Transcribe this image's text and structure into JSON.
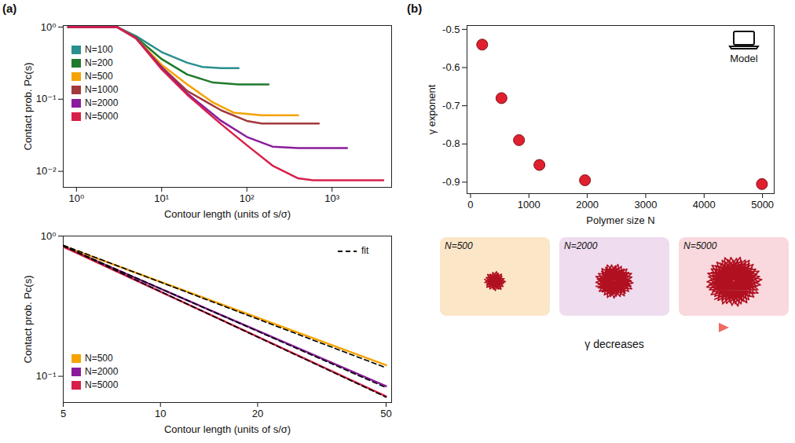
{
  "chart_data": [
    {
      "panel": "(a)",
      "type": "line",
      "log": true,
      "frame": true,
      "xlabel": "Contour length (units of s/σ)",
      "ylabel": "Contact prob. Pc(s)",
      "xlim": [
        0.7,
        5000
      ],
      "ylim": [
        0.006,
        1.05
      ],
      "xticks": [
        {
          "value": 1,
          "label": "10⁰"
        },
        {
          "value": 10,
          "label": "10¹"
        },
        {
          "value": 100,
          "label": "10²"
        },
        {
          "value": 1000,
          "label": "10³"
        }
      ],
      "yticks": [
        {
          "value": 0.01,
          "label": "10⁻²"
        },
        {
          "value": 0.1,
          "label": "10⁻¹"
        },
        {
          "value": 1,
          "label": "10⁰"
        }
      ],
      "legend": "lower left",
      "series": [
        {
          "name": "N=100",
          "color": "#2a8f8f",
          "x": [
            0.8,
            3,
            5,
            10,
            20,
            30,
            50,
            80
          ],
          "values": [
            1,
            1,
            0.75,
            0.45,
            0.32,
            0.28,
            0.27,
            0.27
          ]
        },
        {
          "name": "N=200",
          "color": "#1f7a2c",
          "x": [
            0.8,
            3,
            5,
            10,
            20,
            40,
            80,
            180
          ],
          "values": [
            1,
            1,
            0.72,
            0.36,
            0.22,
            0.17,
            0.16,
            0.16
          ]
        },
        {
          "name": "N=500",
          "color": "#f5a300",
          "x": [
            0.8,
            3,
            5,
            10,
            20,
            40,
            70,
            150,
            400
          ],
          "values": [
            1,
            1,
            0.7,
            0.3,
            0.16,
            0.09,
            0.065,
            0.06,
            0.06
          ]
        },
        {
          "name": "N=1000",
          "color": "#a3393b",
          "x": [
            0.8,
            3,
            5,
            10,
            20,
            50,
            100,
            150,
            300,
            700
          ],
          "values": [
            1,
            1,
            0.7,
            0.28,
            0.13,
            0.07,
            0.05,
            0.046,
            0.046,
            0.046
          ]
        },
        {
          "name": "N=2000",
          "color": "#8a1c9c",
          "x": [
            0.8,
            3,
            5,
            10,
            20,
            50,
            100,
            200,
            400,
            600,
            1500
          ],
          "values": [
            1,
            1,
            0.7,
            0.27,
            0.12,
            0.05,
            0.03,
            0.022,
            0.021,
            0.021,
            0.021
          ]
        },
        {
          "name": "N=5000",
          "color": "#d6204a",
          "x": [
            0.8,
            3,
            5,
            10,
            20,
            50,
            100,
            200,
            400,
            600,
            4000
          ],
          "values": [
            1,
            1,
            0.7,
            0.26,
            0.115,
            0.045,
            0.023,
            0.012,
            0.008,
            0.0075,
            0.0075
          ]
        }
      ]
    },
    {
      "type": "line",
      "log": true,
      "xlabel": "Contour length (units of s/σ)",
      "ylabel": "Contact prob. Pc(s)",
      "xlim": [
        5,
        52
      ],
      "ylim": [
        0.065,
        1
      ],
      "xticks": [
        5,
        10,
        20,
        50
      ],
      "yticks": [
        {
          "value": 0.1,
          "label": "10⁻¹"
        },
        {
          "value": 1,
          "label": "10⁰"
        }
      ],
      "legend": "lower left",
      "series": [
        {
          "name": "N=500",
          "color": "#f5a300",
          "x": [
            5,
            50
          ],
          "values": [
            0.85,
            0.12
          ]
        },
        {
          "name": "N=2000",
          "color": "#8a1c9c",
          "x": [
            5,
            50
          ],
          "values": [
            0.84,
            0.085
          ]
        },
        {
          "name": "N=5000",
          "color": "#d6204a",
          "x": [
            5,
            50
          ],
          "values": [
            0.84,
            0.072
          ]
        }
      ],
      "fit": {
        "name": "fit",
        "color": "#000000",
        "line_style": "dashed",
        "lines": [
          {
            "x": [
              5,
              50
            ],
            "values": [
              0.86,
              0.115
            ]
          },
          {
            "x": [
              5,
              50
            ],
            "values": [
              0.85,
              0.083
            ]
          },
          {
            "x": [
              5,
              50
            ],
            "values": [
              0.85,
              0.071
            ]
          }
        ]
      }
    },
    {
      "panel": "(b)",
      "type": "scatter",
      "xlabel": "Polymer size N",
      "ylabel": "γ exponent",
      "xlim": [
        -60,
        5200
      ],
      "ylim": [
        -0.93,
        -0.49
      ],
      "xticks": [
        0,
        1000,
        2000,
        3000,
        4000,
        5000
      ],
      "yticks": [
        -0.5,
        -0.6,
        -0.7,
        -0.8,
        -0.9
      ],
      "color": "#e0202e",
      "marker": "circle",
      "x": [
        200,
        530,
        830,
        1180,
        1960,
        4990
      ],
      "values": [
        -0.54,
        -0.68,
        -0.79,
        -0.855,
        -0.895,
        -0.905
      ],
      "annotations": [
        "Model"
      ]
    }
  ],
  "insets": {
    "panels": [
      {
        "label": "N=500"
      },
      {
        "label": "N=2000"
      },
      {
        "label": "N=5000"
      }
    ],
    "arrow_label": "γ decreases"
  }
}
